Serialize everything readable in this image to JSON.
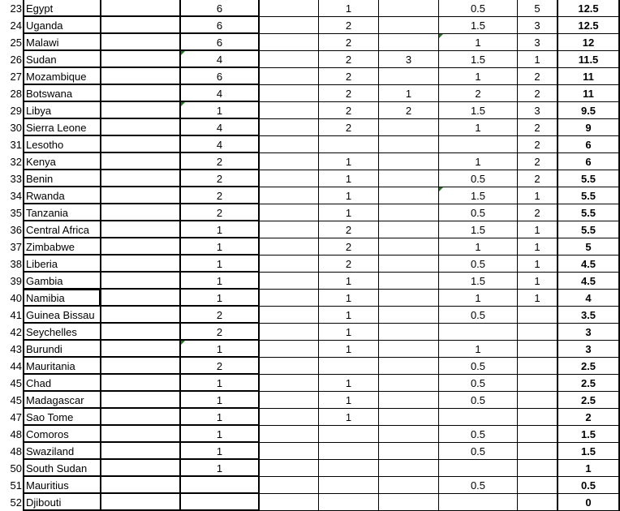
{
  "sheet": {
    "columns": [
      "rank",
      "country",
      "blank",
      "a",
      "b",
      "c",
      "d",
      "e",
      "f",
      "total"
    ],
    "selected_row_index": 17,
    "error_indicator_color": "#1e7b1e",
    "rows": [
      {
        "rank": "23",
        "country": "Egypt",
        "a": "6",
        "c": "1",
        "e": "0.5",
        "f": "5",
        "total": "12.5"
      },
      {
        "rank": "24",
        "country": "Uganda",
        "a": "6",
        "c": "2",
        "e": "1.5",
        "f": "3",
        "total": "12.5"
      },
      {
        "rank": "25",
        "country": "Malawi",
        "a": "6",
        "c": "2",
        "e": "1",
        "f": "3",
        "total": "12",
        "flags": [
          "e"
        ]
      },
      {
        "rank": "26",
        "country": "Sudan",
        "a": "4",
        "c": "2",
        "d": "3",
        "e": "1.5",
        "f": "1",
        "total": "11.5",
        "flags": [
          "a"
        ]
      },
      {
        "rank": "27",
        "country": "Mozambique",
        "a": "6",
        "c": "2",
        "e": "1",
        "f": "2",
        "total": "11"
      },
      {
        "rank": "28",
        "country": "Botswana",
        "a": "4",
        "c": "2",
        "d": "1",
        "e": "2",
        "f": "2",
        "total": "11"
      },
      {
        "rank": "29",
        "country": "Libya",
        "a": "1",
        "c": "2",
        "d": "2",
        "e": "1.5",
        "f": "3",
        "total": "9.5",
        "flags": [
          "a"
        ]
      },
      {
        "rank": "30",
        "country": "Sierra Leone",
        "a": "4",
        "c": "2",
        "e": "1",
        "f": "2",
        "total": "9"
      },
      {
        "rank": "31",
        "country": "Lesotho",
        "a": "4",
        "f": "2",
        "total": "6"
      },
      {
        "rank": "32",
        "country": "Kenya",
        "a": "2",
        "c": "1",
        "e": "1",
        "f": "2",
        "total": "6"
      },
      {
        "rank": "33",
        "country": "Benin",
        "a": "2",
        "c": "1",
        "e": "0.5",
        "f": "2",
        "total": "5.5"
      },
      {
        "rank": "34",
        "country": "Rwanda",
        "a": "2",
        "c": "1",
        "e": "1.5",
        "f": "1",
        "total": "5.5",
        "flags": [
          "e"
        ]
      },
      {
        "rank": "35",
        "country": "Tanzania",
        "a": "2",
        "c": "1",
        "e": "0.5",
        "f": "2",
        "total": "5.5"
      },
      {
        "rank": "36",
        "country": "Central Africa",
        "a": "1",
        "c": "2",
        "e": "1.5",
        "f": "1",
        "total": "5.5"
      },
      {
        "rank": "37",
        "country": "Zimbabwe",
        "a": "1",
        "c": "2",
        "e": "1",
        "f": "1",
        "total": "5"
      },
      {
        "rank": "38",
        "country": "Liberia",
        "a": "1",
        "c": "2",
        "e": "0.5",
        "f": "1",
        "total": "4.5"
      },
      {
        "rank": "39",
        "country": "Gambia",
        "a": "1",
        "c": "1",
        "e": "1.5",
        "f": "1",
        "total": "4.5"
      },
      {
        "rank": "40",
        "country": "Namibia",
        "a": "1",
        "c": "1",
        "e": "1",
        "f": "1",
        "total": "4"
      },
      {
        "rank": "41",
        "country": "Guinea Bissau",
        "a": "2",
        "c": "1",
        "e": "0.5",
        "total": "3.5"
      },
      {
        "rank": "42",
        "country": "Seychelles",
        "a": "2",
        "c": "1",
        "total": "3"
      },
      {
        "rank": "43",
        "country": "Burundi",
        "a": "1",
        "c": "1",
        "e": "1",
        "total": "3",
        "flags": [
          "a"
        ]
      },
      {
        "rank": "44",
        "country": "Mauritania",
        "a": "2",
        "e": "0.5",
        "total": "2.5"
      },
      {
        "rank": "45",
        "country": "Chad",
        "a": "1",
        "c": "1",
        "e": "0.5",
        "total": "2.5"
      },
      {
        "rank": "45",
        "country": "Madagascar",
        "a": "1",
        "c": "1",
        "e": "0.5",
        "total": "2.5"
      },
      {
        "rank": "47",
        "country": "Sao Tome",
        "a": "1",
        "c": "1",
        "total": "2"
      },
      {
        "rank": "48",
        "country": "Comoros",
        "a": "1",
        "e": "0.5",
        "total": "1.5"
      },
      {
        "rank": "48",
        "country": "Swaziland",
        "a": "1",
        "e": "0.5",
        "total": "1.5"
      },
      {
        "rank": "50",
        "country": "South Sudan",
        "a": "1",
        "total": "1"
      },
      {
        "rank": "51",
        "country": "Mauritius",
        "e": "0.5",
        "total": "0.5"
      },
      {
        "rank": "52",
        "country": "Djibouti",
        "total": "0"
      }
    ]
  }
}
